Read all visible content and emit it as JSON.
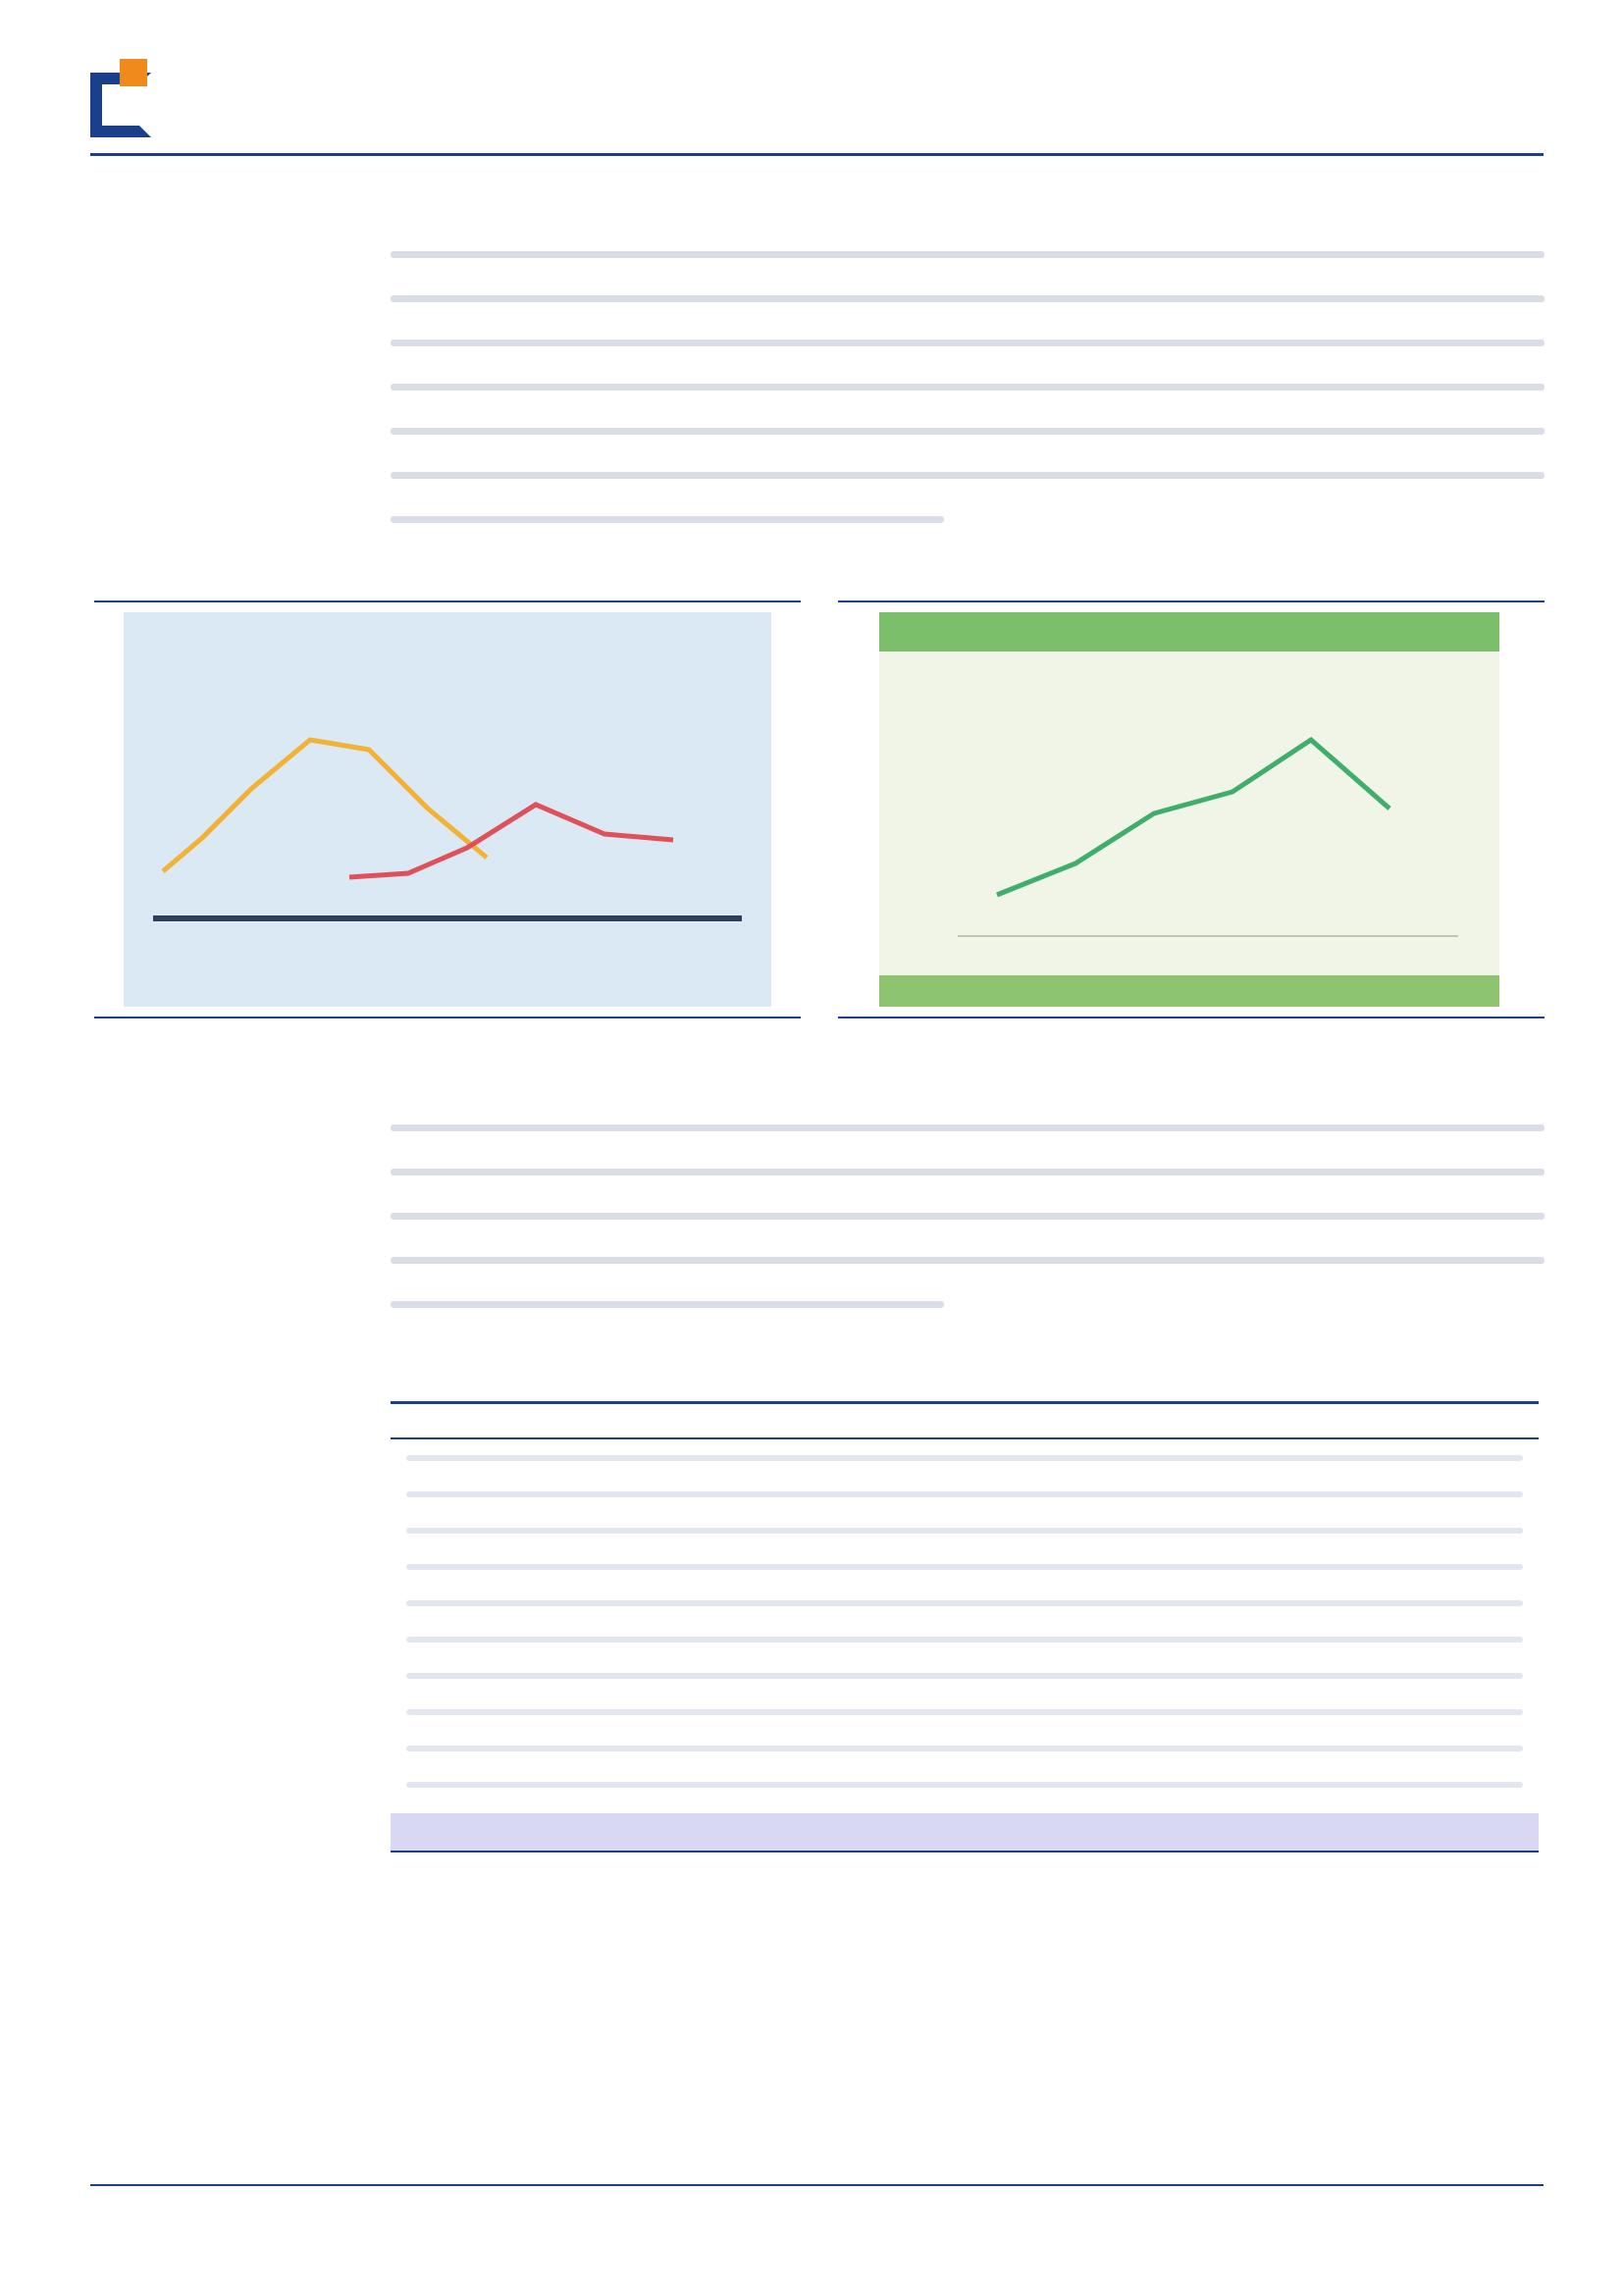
{
  "header": {
    "source_tag": "",
    "company_name": "",
    "company_name_en": "",
    "report_category": ""
  },
  "paragraphs": [
    {
      "text": ""
    },
    {
      "text": ""
    }
  ],
  "figures": [
    {
      "title": "",
      "source": ""
    },
    {
      "title": "",
      "source": ""
    }
  ],
  "table": {
    "title": "",
    "source": ""
  },
  "footer": {
    "copyright_line_1": "",
    "copyright_line_2": "",
    "page_number": ""
  },
  "colors": {
    "brand_blue": "#1b3f8b",
    "brand_orange": "#f08a1c"
  }
}
